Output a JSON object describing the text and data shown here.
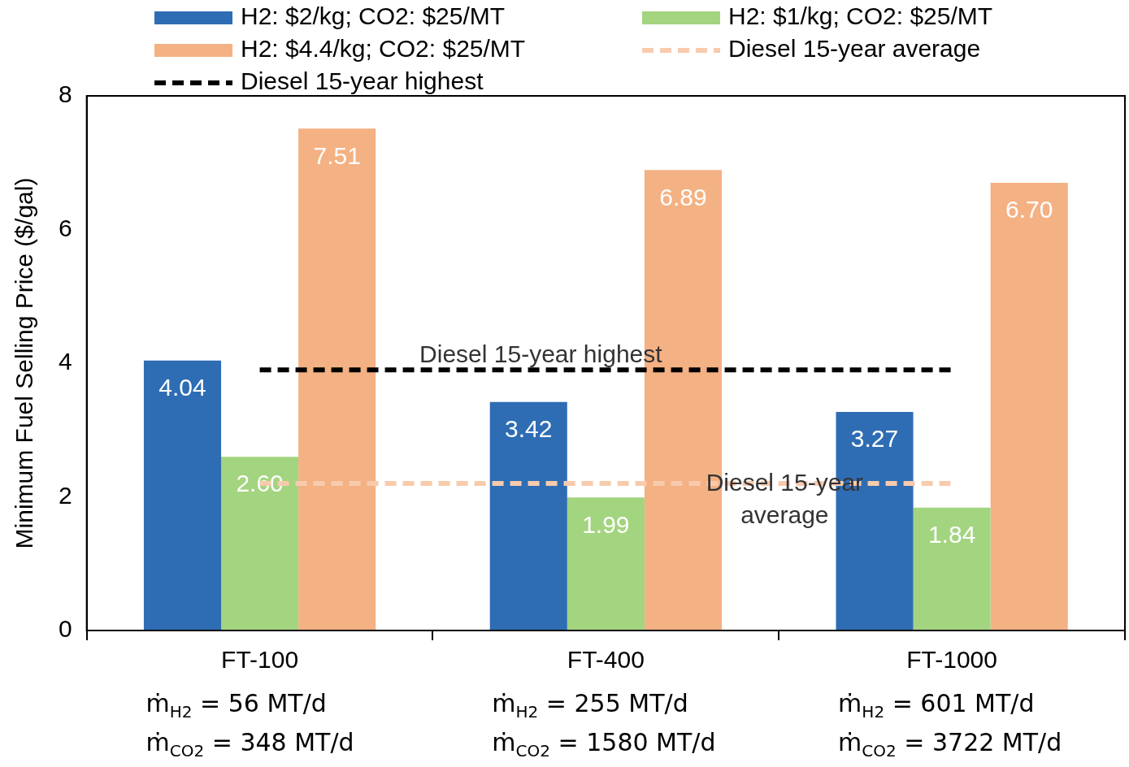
{
  "chart_data": {
    "type": "bar",
    "ylabel": "Minimum Fuel Selling Price ($/gal)",
    "categories": [
      "FT-100",
      "FT-400",
      "FT-1000"
    ],
    "series": [
      {
        "name": "H2: $2/kg; CO2: $25/MT",
        "color": "#2e6db4",
        "values": [
          4.04,
          3.42,
          3.27
        ],
        "value_labels": [
          "4.04",
          "3.42",
          "3.27"
        ]
      },
      {
        "name": "H2: $1/kg; CO2: $25/MT",
        "color": "#a3d47f",
        "values": [
          2.6,
          1.99,
          1.84
        ],
        "value_labels": [
          "2.60",
          "1.99",
          "1.84"
        ]
      },
      {
        "name": "H2: $4.4/kg; CO2: $25/MT",
        "color": "#f4b183",
        "values": [
          7.51,
          6.89,
          6.7
        ],
        "value_labels": [
          "7.51",
          "6.89",
          "6.70"
        ]
      }
    ],
    "ref_lines": [
      {
        "axis": "y",
        "value": 2.2,
        "label": "Diesel 15-year average",
        "color": "#f8cbad",
        "line_style": "dashed"
      },
      {
        "axis": "y",
        "value": 3.9,
        "label": "Diesel 15-year highest",
        "color": "#000000",
        "line_style": "dashed"
      }
    ],
    "ylim": [
      0,
      8
    ],
    "yticks": [
      0,
      2,
      4,
      6,
      8
    ],
    "grid": false,
    "legend": "top",
    "annotations": [
      "ṁ$_{H2}$ = 56 MT/d",
      "ṁ$_{H2}$ = 255 MT/d",
      "ṁ$_{H2}$ = 601 MT/d",
      "ṁ$_{CO2}$ = 348 MT/d",
      "ṁ$_{CO2}$ = 1580 MT/d",
      "ṁ$_{CO2}$ = 3722 MT/d"
    ]
  }
}
